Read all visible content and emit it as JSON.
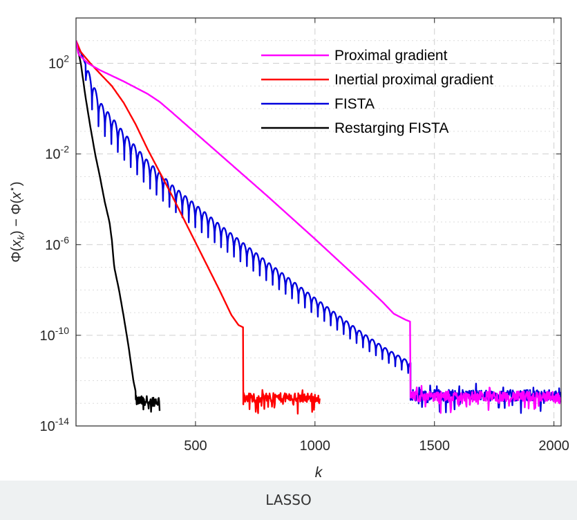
{
  "chart_data": {
    "type": "line",
    "title": "",
    "xlabel": "k",
    "ylabel": "Φ(x_k) − Φ(x*)",
    "ylabel_parts": {
      "a": "Φ(",
      "b": "x",
      "c": "k",
      "d": ") − Φ(",
      "e": "x",
      "f": "⋆",
      "g": ")"
    },
    "yscale": "log",
    "xlim": [
      0,
      2030
    ],
    "ylim_exp": [
      -14,
      4
    ],
    "grid": true,
    "legend_position": "top-right",
    "x_ticks": [
      {
        "value": 500,
        "label": "500"
      },
      {
        "value": 1000,
        "label": "1000"
      },
      {
        "value": 1500,
        "label": "1500"
      },
      {
        "value": 2000,
        "label": "2000"
      }
    ],
    "y_ticks": [
      {
        "exp": 2,
        "base": "10",
        "sup": "2"
      },
      {
        "exp": -2,
        "base": "10",
        "sup": "-2"
      },
      {
        "exp": -6,
        "base": "10",
        "sup": "-6"
      },
      {
        "exp": -10,
        "base": "10",
        "sup": "-10"
      },
      {
        "exp": -14,
        "base": "10",
        "sup": "-14"
      }
    ],
    "series": [
      {
        "name": "Proximal gradient",
        "color": "#ff00ff",
        "points": [
          [
            0,
            3
          ],
          [
            10,
            2.4
          ],
          [
            50,
            2.0
          ],
          [
            100,
            1.7
          ],
          [
            200,
            1.2
          ],
          [
            300,
            0.65
          ],
          [
            350,
            0.3
          ],
          [
            400,
            -0.15
          ],
          [
            600,
            -2.0
          ],
          [
            800,
            -3.85
          ],
          [
            1000,
            -5.75
          ],
          [
            1200,
            -7.7
          ],
          [
            1280,
            -8.5
          ],
          [
            1330,
            -9.05
          ],
          [
            1380,
            -9.32
          ],
          [
            1400,
            -9.4
          ]
        ],
        "noise_band": {
          "x_start": 1400,
          "x_end": 2030,
          "center_exp": -12.7,
          "amplitude": 0.45
        }
      },
      {
        "name": "Inertial proximal gradient",
        "color": "#ff0000",
        "points": [
          [
            0,
            3
          ],
          [
            20,
            2.5
          ],
          [
            60,
            2.0
          ],
          [
            100,
            1.55
          ],
          [
            150,
            1.0
          ],
          [
            200,
            0.25
          ],
          [
            250,
            -0.7
          ],
          [
            300,
            -1.8
          ],
          [
            400,
            -3.8
          ],
          [
            500,
            -5.9
          ],
          [
            600,
            -8.0
          ],
          [
            650,
            -9.1
          ],
          [
            680,
            -9.55
          ],
          [
            700,
            -9.65
          ]
        ],
        "noise_band": {
          "x_start": 700,
          "x_end": 1020,
          "center_exp": -12.75,
          "amplitude": 0.4
        }
      },
      {
        "name": "FISTA",
        "color": "#0000dd",
        "envelope": [
          [
            0,
            3
          ],
          [
            50,
            1.7
          ],
          [
            100,
            0.3
          ],
          [
            200,
            -1.05
          ],
          [
            300,
            -2.3
          ],
          [
            400,
            -3.35
          ],
          [
            600,
            -5.1
          ],
          [
            800,
            -6.75
          ],
          [
            1000,
            -8.35
          ],
          [
            1200,
            -9.9
          ],
          [
            1300,
            -10.6
          ],
          [
            1400,
            -11.2
          ],
          [
            1600,
            -12.15
          ],
          [
            2030,
            -12.6
          ]
        ],
        "oscillation": {
          "period_x": 27,
          "depth": 1.3,
          "start_x": 40,
          "fade_x": 1400
        },
        "noise_band": {
          "x_start": 1400,
          "x_end": 2030,
          "center_exp": -12.65,
          "amplitude": 0.5
        }
      },
      {
        "name": "Restarging FISTA",
        "color": "#000000",
        "points": [
          [
            0,
            3
          ],
          [
            20,
            2.0
          ],
          [
            40,
            0.5
          ],
          [
            60,
            -0.8
          ],
          [
            80,
            -2.0
          ],
          [
            100,
            -3.0
          ],
          [
            120,
            -4.1
          ],
          [
            140,
            -5.0
          ],
          [
            150,
            -5.8
          ],
          [
            160,
            -7.0
          ],
          [
            180,
            -8.0
          ],
          [
            200,
            -9.2
          ],
          [
            220,
            -10.5
          ],
          [
            240,
            -12.0
          ],
          [
            250,
            -12.5
          ]
        ],
        "noise_band": {
          "x_start": 250,
          "x_end": 350,
          "center_exp": -12.9,
          "amplitude": 0.45
        }
      }
    ]
  },
  "caption": "LASSO"
}
